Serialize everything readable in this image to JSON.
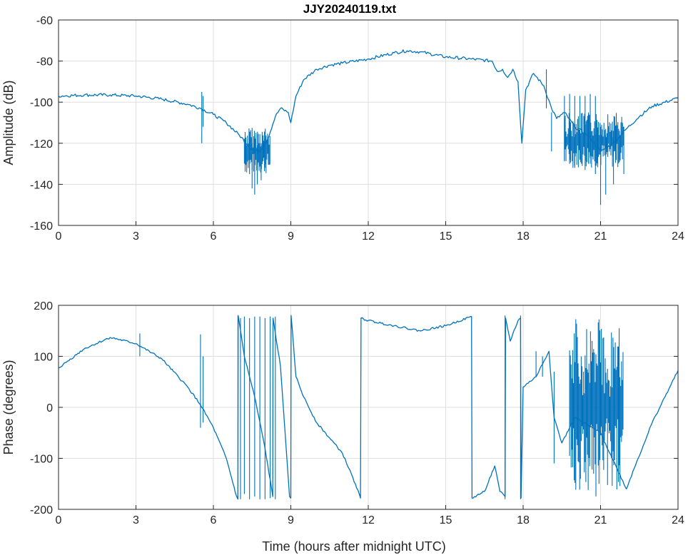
{
  "chart_data": [
    {
      "type": "line",
      "title": "JJY20240119.txt",
      "xlabel": "",
      "ylabel": "Amplitude (dB)",
      "xlim": [
        0,
        24
      ],
      "ylim": [
        -160,
        -60
      ],
      "xticks": [
        0,
        3,
        6,
        9,
        12,
        15,
        18,
        21,
        24
      ],
      "yticks": [
        -60,
        -80,
        -100,
        -120,
        -140,
        -160
      ],
      "grid": true,
      "color": "#0072bd",
      "series": [
        [
          0,
          -97
        ],
        [
          1,
          -96.5
        ],
        [
          2,
          -96.5
        ],
        [
          3,
          -97
        ],
        [
          4,
          -98.5
        ],
        [
          5,
          -101
        ],
        [
          5.5,
          -103
        ],
        [
          6,
          -106
        ],
        [
          6.5,
          -110
        ],
        [
          7,
          -116
        ],
        [
          7.5,
          -123
        ],
        [
          7.8,
          -124
        ],
        [
          8.1,
          -118
        ],
        [
          8.4,
          -107
        ],
        [
          8.6,
          -103
        ],
        [
          8.9,
          -105
        ],
        [
          9.0,
          -110
        ],
        [
          9.2,
          -97
        ],
        [
          9.5,
          -89
        ],
        [
          10,
          -84
        ],
        [
          10.5,
          -82
        ],
        [
          11,
          -81
        ],
        [
          12,
          -79
        ],
        [
          13,
          -76
        ],
        [
          13.5,
          -75
        ],
        [
          14,
          -75.5
        ],
        [
          15,
          -78
        ],
        [
          16,
          -79
        ],
        [
          16.8,
          -80
        ],
        [
          17,
          -85
        ],
        [
          17.2,
          -84
        ],
        [
          17.4,
          -88
        ],
        [
          17.6,
          -84
        ],
        [
          17.8,
          -90
        ],
        [
          17.95,
          -120
        ],
        [
          18.1,
          -94
        ],
        [
          18.4,
          -86
        ],
        [
          18.8,
          -92
        ],
        [
          19.1,
          -103
        ],
        [
          19.3,
          -108
        ],
        [
          19.6,
          -105
        ],
        [
          20,
          -112
        ],
        [
          20.5,
          -116
        ],
        [
          21,
          -124
        ],
        [
          21.5,
          -120
        ],
        [
          22,
          -113
        ],
        [
          22.5,
          -107
        ],
        [
          23,
          -102
        ],
        [
          24,
          -98
        ]
      ],
      "spikes": [
        [
          5.55,
          -120,
          -95
        ],
        [
          5.6,
          -112,
          -97
        ],
        [
          7.4,
          -135,
          -118
        ],
        [
          7.5,
          -142,
          -120
        ],
        [
          7.6,
          -145,
          -122
        ],
        [
          7.7,
          -140,
          -121
        ],
        [
          7.85,
          -138,
          -120
        ],
        [
          8.0,
          -132,
          -117
        ],
        [
          18.9,
          -103,
          -84
        ],
        [
          19.1,
          -124,
          -105
        ],
        [
          19.6,
          -128,
          -97
        ],
        [
          19.8,
          -130,
          -96
        ],
        [
          20.0,
          -132,
          -97
        ],
        [
          20.2,
          -128,
          -97
        ],
        [
          20.4,
          -133,
          -97
        ],
        [
          20.6,
          -130,
          -96
        ],
        [
          20.8,
          -135,
          -97
        ],
        [
          21.0,
          -150,
          -112
        ],
        [
          21.2,
          -145,
          -113
        ],
        [
          21.5,
          -140,
          -114
        ],
        [
          21.9,
          -135,
          -112
        ]
      ],
      "bands": [
        [
          7.2,
          8.2,
          -135,
          -112
        ],
        [
          19.6,
          21.9,
          -132,
          -105
        ]
      ]
    },
    {
      "type": "line",
      "title": "",
      "xlabel": "Time (hours after midnight UTC)",
      "ylabel": "Phase (degrees)",
      "xlim": [
        0,
        24
      ],
      "ylim": [
        -200,
        200
      ],
      "xticks": [
        0,
        3,
        6,
        9,
        12,
        15,
        18,
        21,
        24
      ],
      "yticks": [
        200,
        100,
        0,
        -100,
        -200
      ],
      "grid": true,
      "color": "#0072bd",
      "series": [
        [
          0,
          77
        ],
        [
          1,
          115
        ],
        [
          2,
          137
        ],
        [
          3,
          125
        ],
        [
          4,
          95
        ],
        [
          5,
          40
        ],
        [
          5.5,
          5
        ],
        [
          6,
          -40
        ],
        [
          6.5,
          -100
        ],
        [
          6.9,
          -175
        ],
        [
          6.95,
          -180
        ],
        [
          6.96,
          180
        ],
        [
          7.2,
          100
        ],
        [
          7.6,
          20
        ],
        [
          8.0,
          -80
        ],
        [
          8.3,
          -175
        ],
        [
          8.31,
          175
        ],
        [
          8.6,
          80
        ],
        [
          8.95,
          -175
        ],
        [
          9.0,
          -178
        ],
        [
          9.01,
          180
        ],
        [
          9.2,
          60
        ],
        [
          9.5,
          20
        ],
        [
          10,
          -30
        ],
        [
          11,
          -90
        ],
        [
          11.5,
          -150
        ],
        [
          11.7,
          -178
        ],
        [
          11.72,
          175
        ],
        [
          12,
          170
        ],
        [
          13,
          160
        ],
        [
          14,
          150
        ],
        [
          15,
          160
        ],
        [
          16,
          178
        ],
        [
          16.02,
          -178
        ],
        [
          16.5,
          -165
        ],
        [
          16.9,
          -115
        ],
        [
          17.1,
          -165
        ],
        [
          17.3,
          -175
        ],
        [
          17.32,
          175
        ],
        [
          17.5,
          130
        ],
        [
          17.8,
          170
        ],
        [
          17.9,
          175
        ],
        [
          17.92,
          -178
        ],
        [
          18.0,
          40
        ],
        [
          18.5,
          60
        ],
        [
          19,
          110
        ],
        [
          19.2,
          -20
        ],
        [
          19.5,
          -70
        ],
        [
          19.8,
          -40
        ],
        [
          20,
          -20
        ],
        [
          21,
          -50
        ],
        [
          22,
          -160
        ],
        [
          22.3,
          -120
        ],
        [
          23,
          -30
        ],
        [
          24,
          72
        ]
      ],
      "spikes": [
        [
          3.15,
          100,
          145
        ],
        [
          5.5,
          -40,
          143
        ],
        [
          5.6,
          -30,
          100
        ],
        [
          6.95,
          -180,
          180
        ],
        [
          7.05,
          -180,
          175
        ],
        [
          7.2,
          -170,
          178
        ],
        [
          7.4,
          -180,
          175
        ],
        [
          7.6,
          -175,
          178
        ],
        [
          7.8,
          -180,
          178
        ],
        [
          8.0,
          -180,
          175
        ],
        [
          8.2,
          -178,
          178
        ],
        [
          8.4,
          -180,
          178
        ],
        [
          17.3,
          -180,
          180
        ],
        [
          17.9,
          -180,
          180
        ],
        [
          18.5,
          60,
          110
        ],
        [
          18.75,
          60,
          100
        ],
        [
          19.2,
          -110,
          70
        ]
      ],
      "bands": [
        [
          19.8,
          21.9,
          -180,
          175
        ]
      ]
    }
  ]
}
